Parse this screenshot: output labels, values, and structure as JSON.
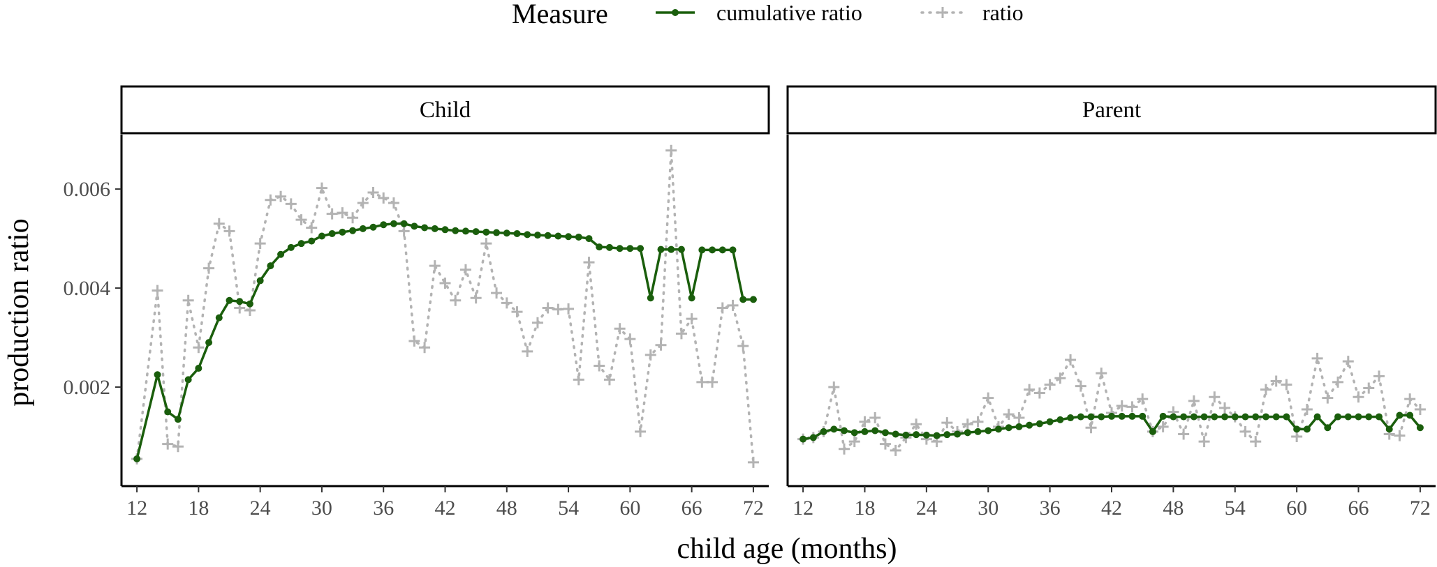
{
  "chart_data": {
    "type": "line",
    "xlabel": "child age (months)",
    "ylabel": "production ratio",
    "xlim": [
      10.5,
      73.5
    ],
    "ylim": [
      0.0,
      0.0071
    ],
    "x_ticks": [
      12,
      18,
      24,
      30,
      36,
      42,
      48,
      54,
      60,
      66,
      72
    ],
    "y_ticks": [
      0.002,
      0.004,
      0.006
    ],
    "y_tick_labels": [
      "0.002",
      "0.004",
      "0.006"
    ],
    "grid": false,
    "legend": {
      "title": "Measure",
      "position": "top",
      "entries": [
        "cumulative ratio",
        "ratio"
      ]
    },
    "colors": {
      "cumulative ratio": "#1a5e0c",
      "ratio": "#b3b3b3"
    },
    "panels": [
      {
        "name": "Child",
        "series": [
          {
            "name": "cumulative ratio",
            "x": [
              12,
              14,
              15,
              16,
              17,
              18,
              19,
              20,
              21,
              22,
              23,
              24,
              25,
              26,
              27,
              28,
              29,
              30,
              31,
              32,
              33,
              34,
              35,
              36,
              37,
              38,
              39,
              40,
              41,
              42,
              43,
              44,
              45,
              46,
              47,
              48,
              49,
              50,
              51,
              52,
              53,
              54,
              55,
              56,
              57,
              58,
              59,
              60,
              61,
              62,
              63,
              64,
              65,
              66,
              67,
              68,
              69,
              70,
              71,
              72
            ],
            "y": [
              0.00055,
              0.00225,
              0.0015,
              0.00135,
              0.00215,
              0.00238,
              0.0029,
              0.0034,
              0.00375,
              0.00373,
              0.00368,
              0.00415,
              0.00445,
              0.00468,
              0.00482,
              0.0049,
              0.00495,
              0.00505,
              0.0051,
              0.00513,
              0.00516,
              0.0052,
              0.00523,
              0.00528,
              0.0053,
              0.0053,
              0.00525,
              0.00522,
              0.0052,
              0.00518,
              0.00516,
              0.00515,
              0.00514,
              0.00513,
              0.00512,
              0.00511,
              0.0051,
              0.00508,
              0.00507,
              0.00506,
              0.00505,
              0.00504,
              0.00503,
              0.005,
              0.00483,
              0.00482,
              0.0048,
              0.0048,
              0.0048,
              0.0038,
              0.00478,
              0.00478,
              0.00478,
              0.0038,
              0.00477,
              0.00477,
              0.00477,
              0.00477,
              0.00377,
              0.00377
            ]
          },
          {
            "name": "ratio",
            "x": [
              12,
              14,
              15,
              16,
              17,
              18,
              19,
              20,
              21,
              22,
              23,
              24,
              25,
              26,
              27,
              28,
              29,
              30,
              31,
              32,
              33,
              34,
              35,
              36,
              37,
              38,
              39,
              40,
              41,
              42,
              43,
              44,
              45,
              46,
              47,
              48,
              49,
              50,
              51,
              52,
              53,
              54,
              55,
              56,
              57,
              58,
              59,
              60,
              61,
              62,
              63,
              64,
              65,
              66,
              67,
              68,
              69,
              70,
              71,
              72
            ],
            "y": [
              0.00055,
              0.00395,
              0.00085,
              0.0008,
              0.00375,
              0.0028,
              0.0044,
              0.0053,
              0.00515,
              0.0036,
              0.00355,
              0.0049,
              0.00578,
              0.00585,
              0.0057,
              0.00538,
              0.00522,
              0.00602,
              0.0055,
              0.00552,
              0.00542,
              0.00572,
              0.00593,
              0.00582,
              0.00572,
              0.00515,
              0.00293,
              0.0028,
              0.00445,
              0.0041,
              0.00375,
              0.00437,
              0.0038,
              0.0049,
              0.0039,
              0.0037,
              0.00352,
              0.00272,
              0.0033,
              0.0036,
              0.00357,
              0.00358,
              0.00215,
              0.00452,
              0.00243,
              0.00215,
              0.00318,
              0.00297,
              0.0011,
              0.00265,
              0.00285,
              0.00678,
              0.00308,
              0.00338,
              0.0021,
              0.0021,
              0.0036,
              0.00365,
              0.00283,
              0.00048
            ]
          }
        ]
      },
      {
        "name": "Parent",
        "series": [
          {
            "name": "cumulative ratio",
            "x": [
              12,
              13,
              14,
              15,
              16,
              17,
              18,
              19,
              20,
              21,
              22,
              23,
              24,
              25,
              26,
              27,
              28,
              29,
              30,
              31,
              32,
              33,
              34,
              35,
              36,
              37,
              38,
              39,
              40,
              41,
              42,
              43,
              44,
              45,
              46,
              47,
              48,
              49,
              50,
              51,
              52,
              53,
              54,
              55,
              56,
              57,
              58,
              59,
              60,
              61,
              62,
              63,
              64,
              65,
              66,
              67,
              68,
              69,
              70,
              71,
              72
            ],
            "y": [
              0.00095,
              0.00098,
              0.0011,
              0.00115,
              0.00112,
              0.00108,
              0.0011,
              0.00112,
              0.00108,
              0.00105,
              0.00103,
              0.00104,
              0.00103,
              0.00102,
              0.00104,
              0.00105,
              0.00108,
              0.0011,
              0.00112,
              0.00115,
              0.00118,
              0.0012,
              0.00123,
              0.00126,
              0.0013,
              0.00134,
              0.00138,
              0.0014,
              0.0014,
              0.0014,
              0.00141,
              0.00141,
              0.00141,
              0.00141,
              0.0011,
              0.00141,
              0.0014,
              0.0014,
              0.0014,
              0.0014,
              0.0014,
              0.0014,
              0.0014,
              0.0014,
              0.0014,
              0.0014,
              0.0014,
              0.0014,
              0.00115,
              0.00115,
              0.0014,
              0.00118,
              0.0014,
              0.0014,
              0.0014,
              0.0014,
              0.0014,
              0.00115,
              0.00143,
              0.00143,
              0.00118
            ]
          },
          {
            "name": "ratio",
            "x": [
              12,
              13,
              14,
              15,
              16,
              17,
              18,
              19,
              20,
              21,
              22,
              23,
              24,
              25,
              26,
              27,
              28,
              29,
              30,
              31,
              32,
              33,
              34,
              35,
              36,
              37,
              38,
              39,
              40,
              41,
              42,
              43,
              44,
              45,
              46,
              47,
              48,
              49,
              50,
              51,
              52,
              53,
              54,
              55,
              56,
              57,
              58,
              59,
              60,
              61,
              62,
              63,
              64,
              65,
              66,
              67,
              68,
              69,
              70,
              71,
              72
            ],
            "y": [
              0.00095,
              0.00098,
              0.0011,
              0.002,
              0.00075,
              0.0009,
              0.0013,
              0.00138,
              0.00085,
              0.00072,
              0.00098,
              0.00125,
              0.00095,
              0.0009,
              0.00128,
              0.0011,
              0.00125,
              0.0013,
              0.00178,
              0.0012,
              0.00145,
              0.00138,
              0.00195,
              0.00188,
              0.00205,
              0.00218,
              0.00255,
              0.00202,
              0.00118,
              0.00228,
              0.00148,
              0.00162,
              0.0016,
              0.00176,
              0.0011,
              0.0012,
              0.0015,
              0.00105,
              0.00172,
              0.0009,
              0.0018,
              0.00158,
              0.0014,
              0.0011,
              0.0009,
              0.00195,
              0.00212,
              0.00205,
              0.001,
              0.00155,
              0.00258,
              0.00178,
              0.0021,
              0.00252,
              0.0018,
              0.00198,
              0.00222,
              0.00105,
              0.00102,
              0.00176,
              0.00155
            ]
          }
        ]
      }
    ]
  }
}
